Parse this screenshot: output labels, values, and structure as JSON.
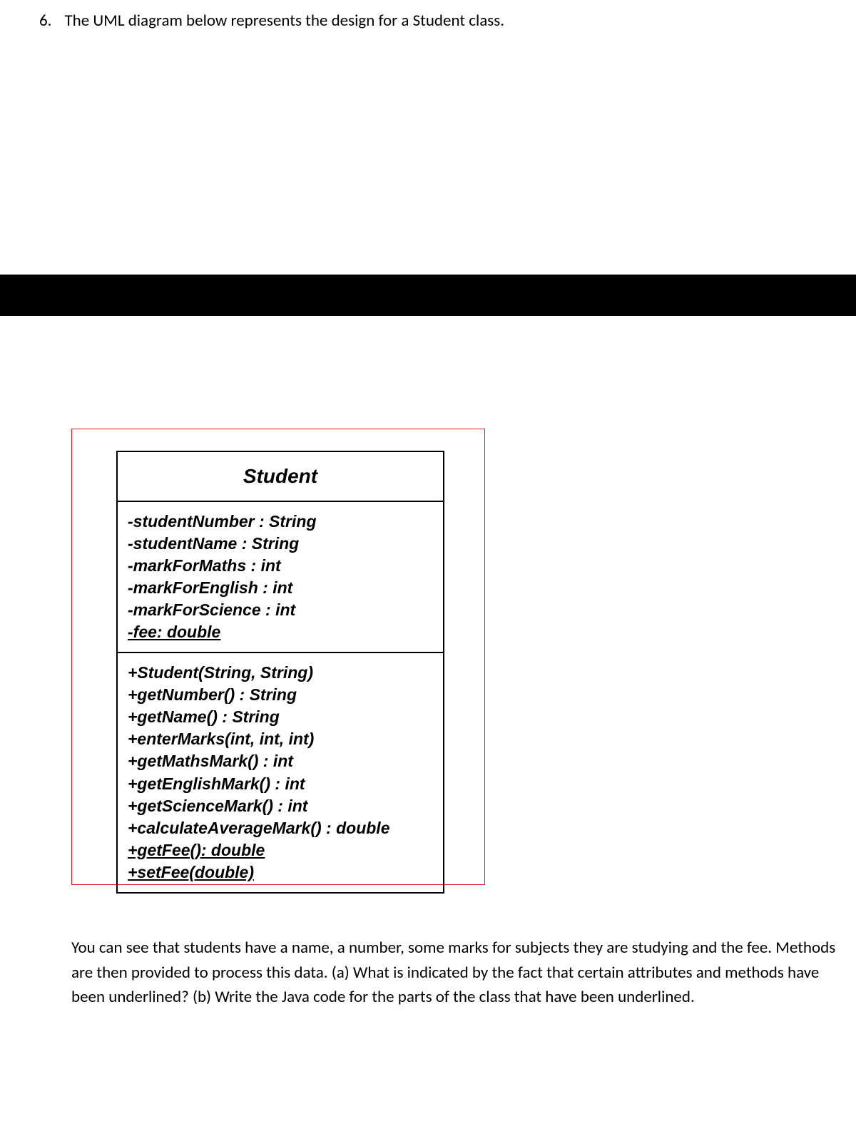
{
  "question": {
    "number": "6.",
    "text": "The UML diagram below represents the design for a Student class."
  },
  "uml": {
    "className": "Student",
    "attributes": [
      {
        "text": "-studentNumber : String",
        "underlined": false
      },
      {
        "text": "-studentName : String",
        "underlined": false
      },
      {
        "text": "-markForMaths : int",
        "underlined": false
      },
      {
        "text": "-markForEnglish : int",
        "underlined": false
      },
      {
        "text": "-markForScience : int",
        "underlined": false
      },
      {
        "text": "-fee: double",
        "underlined": true
      }
    ],
    "methods": [
      {
        "text": "+Student(String, String)",
        "underlined": false
      },
      {
        "text": "+getNumber() : String",
        "underlined": false
      },
      {
        "text": "+getName() : String",
        "underlined": false
      },
      {
        "text": "+enterMarks(int, int, int)",
        "underlined": false
      },
      {
        "text": "+getMathsMark() : int",
        "underlined": false
      },
      {
        "text": "+getEnglishMark() : int",
        "underlined": false
      },
      {
        "text": "+getScienceMark() : int",
        "underlined": false
      },
      {
        "text": "+calculateAverageMark() : double",
        "underlined": false
      },
      {
        "text": "+getFee(): double",
        "underlined": true
      },
      {
        "text": "+setFee(double)",
        "underlined": true
      }
    ]
  },
  "bodyText": "You can see that students have a name, a number, some marks for subjects they are studying and the fee. Methods are then provided to process this data. (a) What is indicated by the fact that certain attributes and methods have been underlined? (b) Write the Java code for the parts of the class that have been underlined.",
  "colors": {
    "text": "#000000",
    "background": "#ffffff",
    "border_red": "#e02020",
    "black_bar": "#000000"
  },
  "diagram": {
    "outer_border_color": "#e02020",
    "uml_border_color": "#000000",
    "uml_border_width": 2,
    "title_fontsize": 28,
    "body_fontsize": 23,
    "font_weight": "bold",
    "font_style": "italic"
  }
}
